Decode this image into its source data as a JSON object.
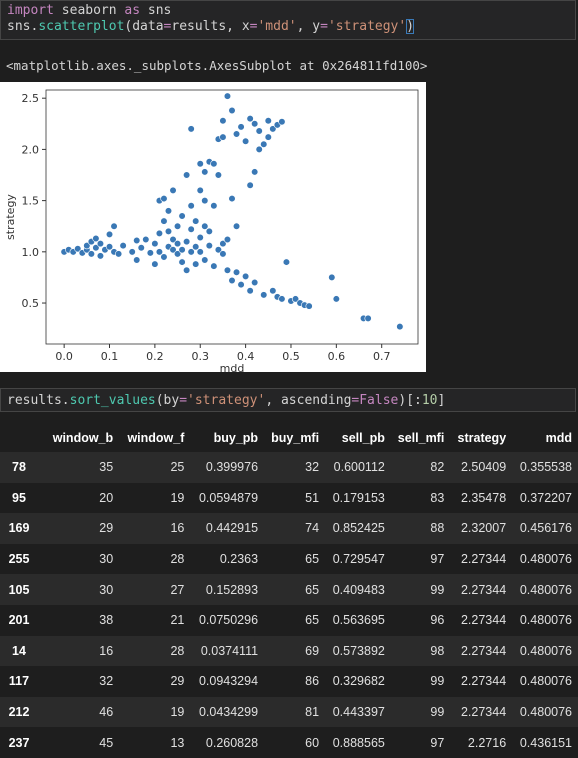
{
  "cell1": {
    "line1": {
      "kw1": "import",
      "mid": " seaborn ",
      "kw2": "as",
      "end": " sns"
    },
    "line2": {
      "obj": "sns.",
      "fn": "scatterplot",
      "p1": "(data",
      "eq1": "=",
      "p2": "results, x",
      "eq2": "=",
      "s1": "'mdd'",
      "p3": ", y",
      "eq3": "=",
      "s2": "'strategy'",
      "p4": ")"
    }
  },
  "output_text": "<matplotlib.axes._subplots.AxesSubplot at 0x264811fd100>",
  "cell2": {
    "obj": "results.",
    "fn": "sort_values",
    "p1": "(by",
    "eq1": "=",
    "s1": "'strategy'",
    "p2": ", ascending",
    "eq2": "=",
    "kw": "False",
    "p3": ")[:",
    "num": "10",
    "p4": "]"
  },
  "chart_data": {
    "type": "scatter",
    "xlabel": "mdd",
    "ylabel": "strategy",
    "xlim": [
      -0.04,
      0.78
    ],
    "ylim": [
      0.1,
      2.58
    ],
    "xticks": [
      "0.0",
      "0.1",
      "0.2",
      "0.3",
      "0.4",
      "0.5",
      "0.6",
      "0.7"
    ],
    "yticks": [
      "0.5",
      "1.0",
      "1.5",
      "2.0",
      "2.5"
    ],
    "marker_color": "#3a78b5",
    "points": [
      [
        0.0,
        1.0
      ],
      [
        0.01,
        1.02
      ],
      [
        0.02,
        1.0
      ],
      [
        0.03,
        1.03
      ],
      [
        0.04,
        0.99
      ],
      [
        0.05,
        1.02
      ],
      [
        0.05,
        1.06
      ],
      [
        0.06,
        1.1
      ],
      [
        0.06,
        0.98
      ],
      [
        0.07,
        1.04
      ],
      [
        0.07,
        1.13
      ],
      [
        0.08,
        1.08
      ],
      [
        0.08,
        0.96
      ],
      [
        0.09,
        1.02
      ],
      [
        0.1,
        1.05
      ],
      [
        0.1,
        1.17
      ],
      [
        0.11,
        1.0
      ],
      [
        0.11,
        1.25
      ],
      [
        0.12,
        0.98
      ],
      [
        0.13,
        1.06
      ],
      [
        0.15,
        1.0
      ],
      [
        0.16,
        1.11
      ],
      [
        0.16,
        0.92
      ],
      [
        0.17,
        1.04
      ],
      [
        0.18,
        1.12
      ],
      [
        0.19,
        0.99
      ],
      [
        0.2,
        1.08
      ],
      [
        0.2,
        0.88
      ],
      [
        0.21,
        1.0
      ],
      [
        0.21,
        1.18
      ],
      [
        0.21,
        1.5
      ],
      [
        0.22,
        1.3
      ],
      [
        0.22,
        1.52
      ],
      [
        0.22,
        0.95
      ],
      [
        0.23,
        1.05
      ],
      [
        0.23,
        1.2
      ],
      [
        0.23,
        1.4
      ],
      [
        0.24,
        1.02
      ],
      [
        0.24,
        1.12
      ],
      [
        0.24,
        1.6
      ],
      [
        0.25,
        0.98
      ],
      [
        0.25,
        1.08
      ],
      [
        0.25,
        1.25
      ],
      [
        0.26,
        0.9
      ],
      [
        0.26,
        1.02
      ],
      [
        0.26,
        1.35
      ],
      [
        0.27,
        1.1
      ],
      [
        0.27,
        0.82
      ],
      [
        0.27,
        1.75
      ],
      [
        0.28,
        1.0
      ],
      [
        0.28,
        1.22
      ],
      [
        0.28,
        1.45
      ],
      [
        0.28,
        2.2
      ],
      [
        0.29,
        1.3
      ],
      [
        0.29,
        1.05
      ],
      [
        0.29,
        0.88
      ],
      [
        0.3,
        1.14
      ],
      [
        0.3,
        1.6
      ],
      [
        0.3,
        1.86
      ],
      [
        0.3,
        1.0
      ],
      [
        0.31,
        1.25
      ],
      [
        0.31,
        1.78
      ],
      [
        0.31,
        0.92
      ],
      [
        0.31,
        1.5
      ],
      [
        0.32,
        1.06
      ],
      [
        0.32,
        1.88
      ],
      [
        0.32,
        1.2
      ],
      [
        0.33,
        1.86
      ],
      [
        0.33,
        0.86
      ],
      [
        0.33,
        1.45
      ],
      [
        0.34,
        1.02
      ],
      [
        0.34,
        1.75
      ],
      [
        0.34,
        2.1
      ],
      [
        0.35,
        1.08
      ],
      [
        0.35,
        2.28
      ],
      [
        0.35,
        0.98
      ],
      [
        0.35,
        2.12
      ],
      [
        0.36,
        2.52
      ],
      [
        0.36,
        0.82
      ],
      [
        0.36,
        1.12
      ],
      [
        0.37,
        2.38
      ],
      [
        0.37,
        0.72
      ],
      [
        0.37,
        1.52
      ],
      [
        0.38,
        1.25
      ],
      [
        0.38,
        2.15
      ],
      [
        0.38,
        0.8
      ],
      [
        0.39,
        2.22
      ],
      [
        0.39,
        0.68
      ],
      [
        0.4,
        2.08
      ],
      [
        0.4,
        0.76
      ],
      [
        0.41,
        2.3
      ],
      [
        0.41,
        1.65
      ],
      [
        0.41,
        0.62
      ],
      [
        0.42,
        2.25
      ],
      [
        0.42,
        0.7
      ],
      [
        0.42,
        1.78
      ],
      [
        0.43,
        2.0
      ],
      [
        0.43,
        2.18
      ],
      [
        0.44,
        2.05
      ],
      [
        0.44,
        0.58
      ],
      [
        0.45,
        2.12
      ],
      [
        0.45,
        2.28
      ],
      [
        0.46,
        2.2
      ],
      [
        0.46,
        0.62
      ],
      [
        0.47,
        2.24
      ],
      [
        0.47,
        0.56
      ],
      [
        0.48,
        2.27
      ],
      [
        0.48,
        0.54
      ],
      [
        0.49,
        0.9
      ],
      [
        0.5,
        0.52
      ],
      [
        0.51,
        0.54
      ],
      [
        0.52,
        0.5
      ],
      [
        0.53,
        0.48
      ],
      [
        0.54,
        0.47
      ],
      [
        0.59,
        0.75
      ],
      [
        0.6,
        0.54
      ],
      [
        0.66,
        0.35
      ],
      [
        0.67,
        0.35
      ],
      [
        0.74,
        0.27
      ]
    ]
  },
  "table": {
    "columns": [
      "",
      "window_b",
      "window_f",
      "buy_pb",
      "buy_mfi",
      "sell_pb",
      "sell_mfi",
      "strategy",
      "mdd"
    ],
    "rows": [
      [
        "78",
        "35",
        "25",
        "0.399976",
        "32",
        "0.600112",
        "82",
        "2.50409",
        "0.355538"
      ],
      [
        "95",
        "20",
        "19",
        "0.0594879",
        "51",
        "0.179153",
        "83",
        "2.35478",
        "0.372207"
      ],
      [
        "169",
        "29",
        "16",
        "0.442915",
        "74",
        "0.852425",
        "88",
        "2.32007",
        "0.456176"
      ],
      [
        "255",
        "30",
        "28",
        "0.2363",
        "65",
        "0.729547",
        "97",
        "2.27344",
        "0.480076"
      ],
      [
        "105",
        "30",
        "27",
        "0.152893",
        "65",
        "0.409483",
        "99",
        "2.27344",
        "0.480076"
      ],
      [
        "201",
        "38",
        "21",
        "0.0750296",
        "65",
        "0.563695",
        "96",
        "2.27344",
        "0.480076"
      ],
      [
        "14",
        "16",
        "28",
        "0.0374111",
        "69",
        "0.573892",
        "98",
        "2.27344",
        "0.480076"
      ],
      [
        "117",
        "32",
        "29",
        "0.0943294",
        "86",
        "0.329682",
        "99",
        "2.27344",
        "0.480076"
      ],
      [
        "212",
        "46",
        "19",
        "0.0434299",
        "81",
        "0.443397",
        "99",
        "2.27344",
        "0.480076"
      ],
      [
        "237",
        "45",
        "13",
        "0.260828",
        "60",
        "0.888565",
        "97",
        "2.2716",
        "0.436151"
      ]
    ]
  }
}
